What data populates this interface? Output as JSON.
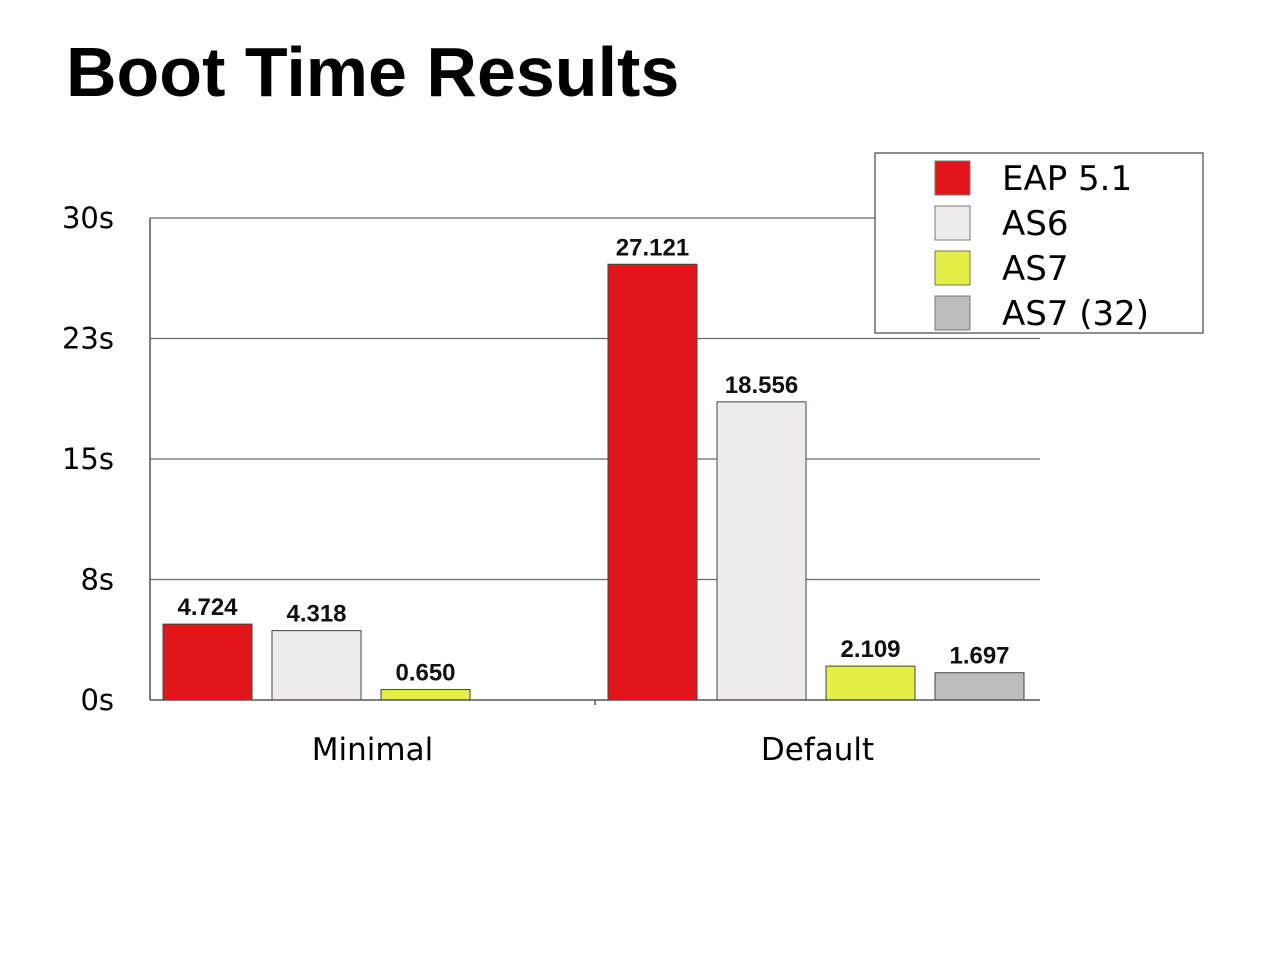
{
  "slide": {
    "title": "Boot Time Results"
  },
  "chart_data": {
    "type": "bar",
    "categories": [
      "Minimal",
      "Default"
    ],
    "series": [
      {
        "name": "EAP 5.1",
        "color": "#e2161a",
        "values": [
          4.724,
          27.121
        ],
        "labels": [
          "4.724",
          "27.121"
        ]
      },
      {
        "name": "AS6",
        "color": "#f0ebeb",
        "values": [
          4.318,
          18.556
        ],
        "labels": [
          "4.318",
          "18.556"
        ]
      },
      {
        "name": "AS7",
        "color": "#e3ee47",
        "values": [
          0.65,
          2.109
        ],
        "labels": [
          "0.650",
          "2.109"
        ]
      },
      {
        "name": "AS7 (32)",
        "color": "#bdbdbd",
        "values": [
          null,
          1.697
        ],
        "labels": [
          "",
          "1.697"
        ]
      }
    ],
    "yticks": [
      0,
      7.5,
      15,
      22.5,
      30
    ],
    "ytick_labels": [
      "0s",
      "8s",
      "15s",
      "23s",
      "30s"
    ],
    "ylim": [
      0,
      30
    ],
    "grid": true,
    "legend_position": "top-right",
    "title": "",
    "xlabel": "",
    "ylabel": ""
  }
}
